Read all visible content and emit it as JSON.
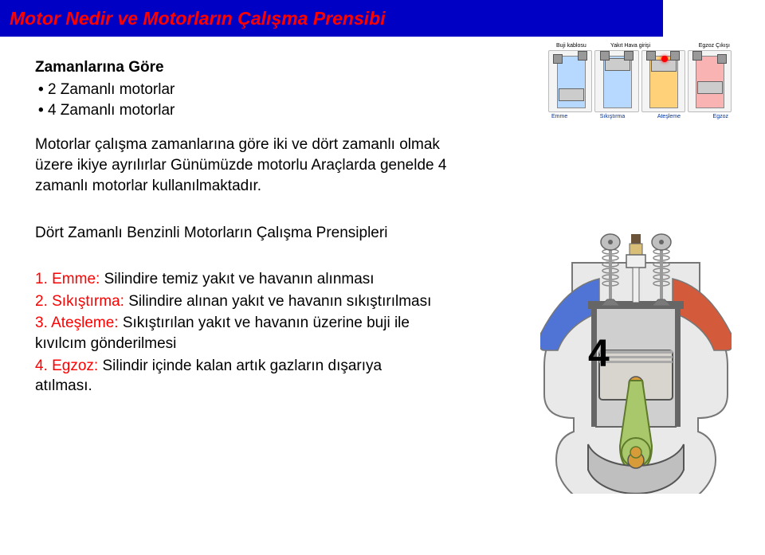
{
  "header": {
    "title": "Motor Nedir ve Motorların Çalışma Prensibi"
  },
  "section": {
    "heading": "Zamanlarına Göre",
    "bullet1": "2 Zamanlı motorlar",
    "bullet2": "4 Zamanlı motorlar",
    "para": "Motorlar çalışma zamanlarına göre iki ve dört zamanlı olmak üzere  ikiye ayrılırlar Günümüzde motorlu Araçlarda genelde 4 zamanlı motorlar  kullanılmaktadır."
  },
  "subheading": "Dört Zamanlı Benzinli Motorların Çalışma Prensipleri",
  "list": {
    "i1_label": "1. Emme:",
    "i1_text": " Silindire temiz yakıt ve havanın alınması",
    "i2_label": "2. Sıkıştırma:",
    "i2_text": " Silindire alınan yakıt ve havanın sıkıştırılması",
    "i3_label": "3. Ateşleme:",
    "i3_text": " Sıkıştırılan yakıt ve havanın üzerine buji ile kıvılcım gönderilmesi",
    "i4_label": "4. Egzoz:",
    "i4_text": " Silindir içinde kalan artık gazların dışarıya atılması."
  },
  "strip": {
    "top_labels": [
      "Buji kablosu",
      "Yakıt Hava girişi",
      "",
      "Egzoz Çıkışı"
    ],
    "bottom_labels": [
      "Emme",
      "Sıkıştırma",
      "Ateşleme",
      "Egzoz"
    ],
    "engines": [
      {
        "piston_top": "62%",
        "cyl_fill": "#b7d8ff",
        "valve_open": "left"
      },
      {
        "piston_top": "12%",
        "cyl_fill": "#b7d8ff",
        "valve_open": "none"
      },
      {
        "piston_top": "14%",
        "cyl_fill": "#ffd27a",
        "valve_open": "none",
        "spark": true
      },
      {
        "piston_top": "50%",
        "cyl_fill": "#f9b3b3",
        "valve_open": "right"
      }
    ],
    "colors": {
      "bg": "#f4f4f4",
      "border": "#bbbbbb",
      "cyl_border": "#888888",
      "piston": "#cccccc",
      "piston_border": "#666666",
      "valve": "#999999",
      "valve_border": "#555555",
      "spark": "#ff0000"
    }
  },
  "big_engine": {
    "colors": {
      "body_fill": "#e9e9e9",
      "body_stroke": "#777777",
      "cylinder_wall": "#cfcfcf",
      "cylinder_stroke": "#666666",
      "piston_fill": "#d7d5ce",
      "piston_stroke": "#555555",
      "piston_top_detail": "#a9a9a9",
      "rod_fill": "#a9c86b",
      "rod_stroke": "#5e7a2a",
      "crank_fill": "#bfbfbf",
      "crank_stroke": "#555555",
      "crank_pin": "#d89b3a",
      "cam_fill": "#c0c0c0",
      "cam_stroke": "#666666",
      "spring_stroke": "#8a8a8a",
      "valve_stem": "#9a9a9a",
      "valve_head": "#7a7a7a",
      "plug_body": "#efefef",
      "plug_insulator": "#d9be77",
      "plug_top": "#6b543a",
      "intake_fill": "#4f74d6",
      "exhaust_fill": "#d45a3c",
      "number_fill": "#000000"
    },
    "stroke_number": "4"
  }
}
